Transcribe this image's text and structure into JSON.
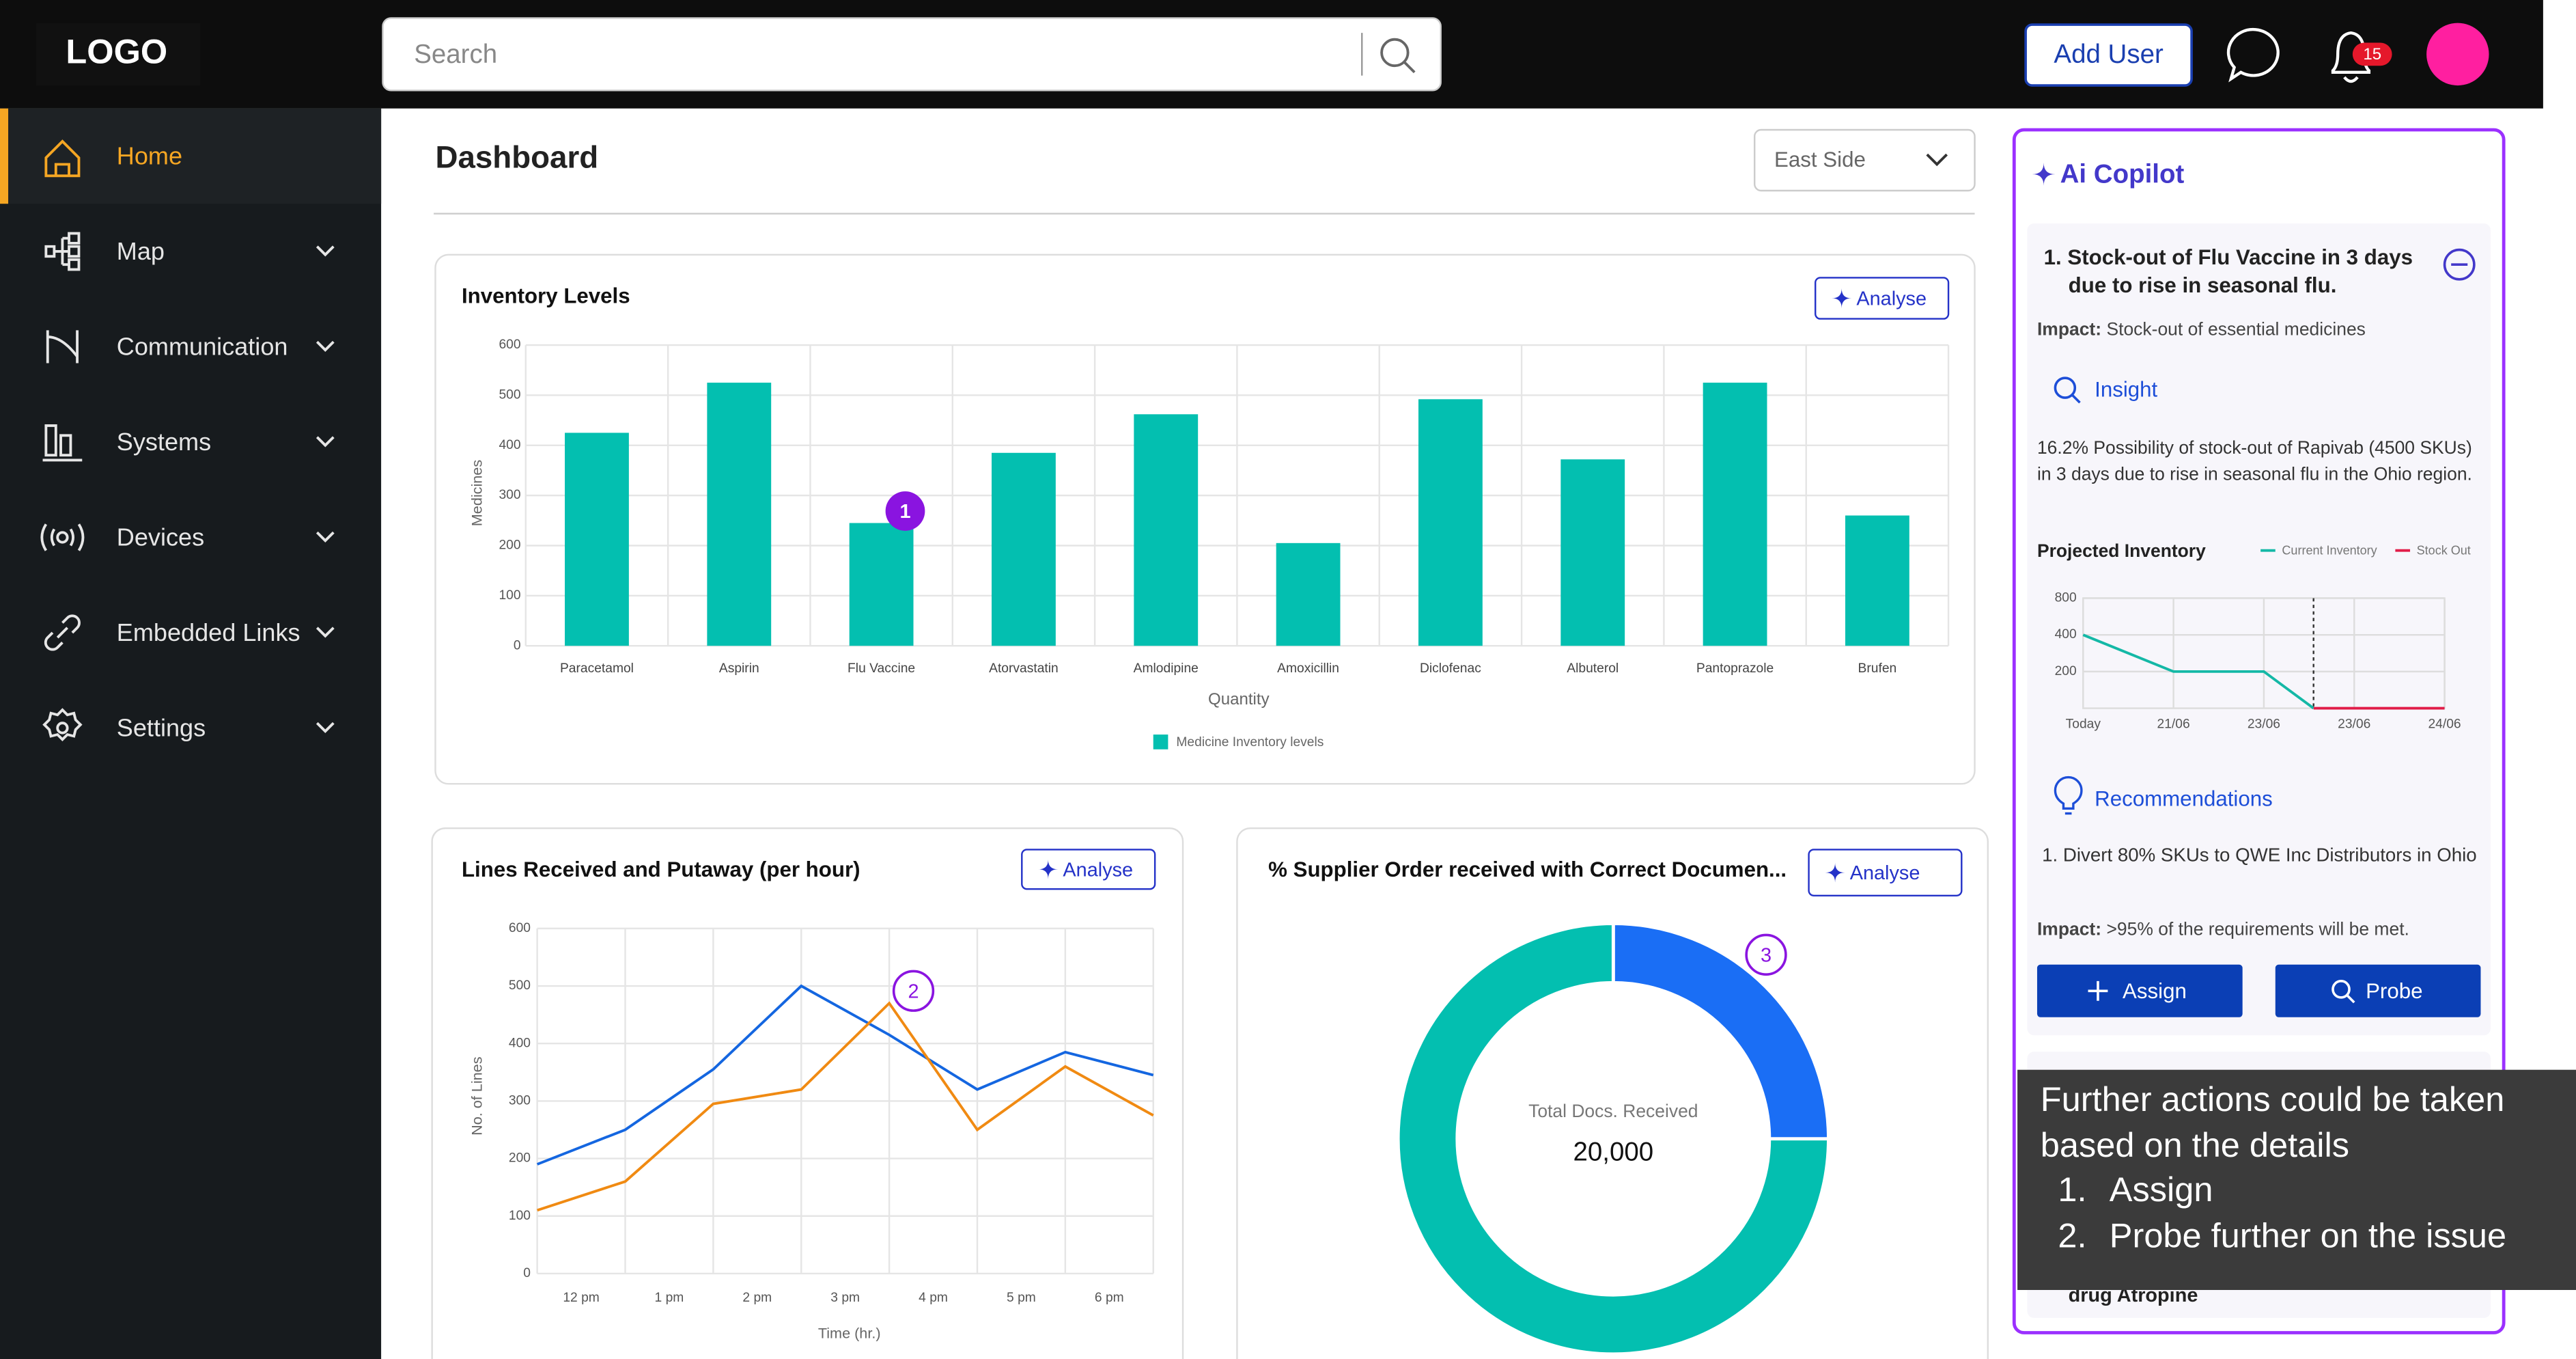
{
  "header": {
    "logo": "LOGO",
    "search_placeholder": "Search",
    "add_user": "Add User",
    "notification_count": "15"
  },
  "sidebar": {
    "items": [
      "Home",
      "Map",
      "Communication",
      "Systems",
      "Devices",
      "Embedded Links",
      "Settings"
    ]
  },
  "dashboard": {
    "title": "Dashboard",
    "filter": "East Side"
  },
  "chart_data": [
    {
      "type": "bar",
      "title": "Inventory Levels",
      "button": "Analyse",
      "badge": "1",
      "categories": [
        "Paracetamol",
        "Aspirin",
        "Flu Vaccine",
        "Atorvastatin",
        "Amlodipine",
        "Amoxicillin",
        "Diclofenac",
        "Albuterol",
        "Pantoprazole",
        "Brufen"
      ],
      "values": [
        425,
        525,
        245,
        385,
        462,
        205,
        492,
        372,
        525,
        260
      ],
      "color": "#03bfb0",
      "ylim": [
        0,
        600
      ],
      "yticks": [
        0,
        100,
        200,
        300,
        400,
        500,
        600
      ],
      "y_label": "Medicines",
      "x_label": "Quantity",
      "legend": "Medicine Inventory levels",
      "grid": true
    },
    {
      "type": "line",
      "title": "Lines Received and Putaway (per hour)",
      "button": "Analyse",
      "badge": "2",
      "x": [
        0,
        1,
        2,
        3,
        4,
        5,
        6,
        7
      ],
      "xlim": [
        0,
        7
      ],
      "xticks": [
        {
          "value": 0.5,
          "label": "12 pm"
        },
        {
          "value": 1.5,
          "label": "1 pm"
        },
        {
          "value": 2.5,
          "label": "2 pm"
        },
        {
          "value": 3.5,
          "label": "3 pm"
        },
        {
          "value": 4.5,
          "label": "4 pm"
        },
        {
          "value": 5.5,
          "label": "5 pm"
        },
        {
          "value": 6.5,
          "label": "6 pm"
        }
      ],
      "series": [
        {
          "color": "#1466e0",
          "values": [
            190,
            250,
            355,
            500,
            415,
            320,
            385,
            345
          ]
        },
        {
          "color": "#f08a12",
          "values": [
            110,
            160,
            295,
            320,
            470,
            250,
            360,
            275
          ]
        }
      ],
      "ylim": [
        0,
        600
      ],
      "yticks": [
        0,
        100,
        200,
        300,
        400,
        500,
        600
      ],
      "x_label": "Time (hr.)",
      "y_label": "No. of Lines",
      "grid": true
    },
    {
      "type": "pie",
      "title": "% Supplier Order received with Correct Documen...",
      "button": "Analyse",
      "badge": "3",
      "values": [
        25,
        75
      ],
      "colors": [
        "#1a6ef5",
        "#03bfb0"
      ],
      "center_label": "Total Docs. Received",
      "center_value": "20,000"
    },
    {
      "type": "line",
      "title": "Projected Inventory",
      "log_scale": true,
      "grid": true,
      "xlim": [
        0,
        4
      ],
      "xticks": [
        {
          "value": 0,
          "label": "Today"
        },
        {
          "value": 1,
          "label": "21/06"
        },
        {
          "value": 2,
          "label": "23/06"
        },
        {
          "value": 3,
          "label": "23/06"
        },
        {
          "value": 4,
          "label": "24/06"
        }
      ],
      "ylim": [
        100,
        800
      ],
      "yticks": [
        200,
        400,
        800
      ],
      "series": [
        {
          "name": "Current Inventory",
          "color": "#14b8a6",
          "x": [
            0,
            1,
            2,
            2.55
          ],
          "values": [
            400,
            200,
            200,
            100
          ]
        },
        {
          "name": "Stock Out",
          "color": "#e11d48",
          "x": [
            2.55,
            4
          ],
          "values": [
            100,
            100
          ]
        }
      ]
    }
  ],
  "copilot": {
    "title": "Ai Copilot",
    "issue": "1. Stock-out of Flu Vaccine in 3 days due to rise in seasonal flu.",
    "impact_label": "Impact:",
    "impact": "Stock-out of essential medicines",
    "insight_title": "Insight",
    "insight": "16.2% Possibility of stock-out of Rapivab (4500 SKUs) in 3 days due to rise in seasonal flu in the Ohio region.",
    "recommendations_title": "Recommendations",
    "recommendation": "1. Divert 80% SKUs to QWE Inc Distributors in Ohio",
    "rec_impact_label": "Impact:",
    "rec_impact": ">95% of the requirements will be met.",
    "assign": "Assign",
    "probe": "Probe",
    "next_item": "drug Atropine"
  },
  "tooltip": {
    "text": "Further actions could be taken based on the details",
    "items": [
      "Assign",
      "Probe further on the issue"
    ]
  }
}
